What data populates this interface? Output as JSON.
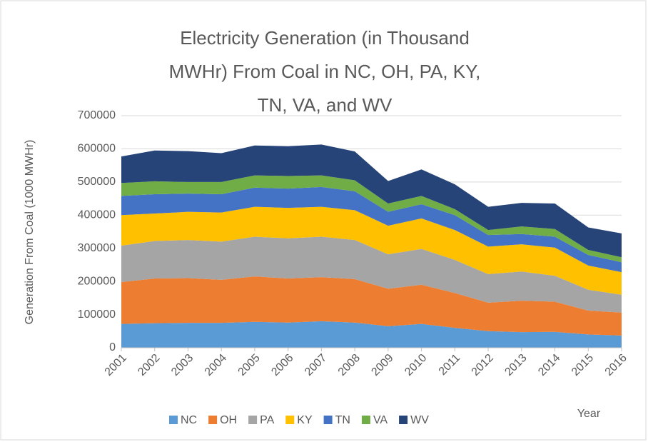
{
  "chart_data": {
    "type": "stacked_area",
    "title": "Electricity Generation (in Thousand MWHr) From Coal in NC, OH, PA, KY, TN, VA, and WV",
    "x_label": "Year",
    "y_label": "Generation From Coal (1000 MWHr)",
    "x": [
      2001,
      2002,
      2003,
      2004,
      2005,
      2006,
      2007,
      2008,
      2009,
      2010,
      2011,
      2012,
      2013,
      2014,
      2015,
      2016
    ],
    "xlim": [
      2001,
      2016
    ],
    "ylim": [
      0,
      700000
    ],
    "yticks": [
      0,
      100000,
      200000,
      300000,
      400000,
      500000,
      600000,
      700000
    ],
    "grid": true,
    "legend": "bottom",
    "series": [
      {
        "name": "NC",
        "color": "#5b9bd5",
        "values": [
          72000,
          74000,
          75000,
          75000,
          78000,
          76000,
          80000,
          76000,
          65000,
          72000,
          60000,
          50000,
          47000,
          48000,
          40000,
          37000
        ]
      },
      {
        "name": "OH",
        "color": "#ed7d31",
        "values": [
          126000,
          135000,
          135000,
          130000,
          137000,
          133000,
          133000,
          131000,
          113000,
          118000,
          105000,
          86000,
          95000,
          91000,
          72000,
          69000
        ]
      },
      {
        "name": "PA",
        "color": "#a5a5a5",
        "values": [
          110000,
          113000,
          115000,
          115000,
          120000,
          121000,
          122000,
          118000,
          104000,
          108000,
          100000,
          86000,
          88000,
          78000,
          63000,
          54000
        ]
      },
      {
        "name": "KY",
        "color": "#ffc000",
        "values": [
          92000,
          83000,
          85000,
          88000,
          90000,
          92000,
          90000,
          90000,
          86000,
          92000,
          90000,
          83000,
          82000,
          85000,
          73000,
          68000
        ]
      },
      {
        "name": "TN",
        "color": "#4472c4",
        "values": [
          58000,
          58000,
          55000,
          55000,
          58000,
          58000,
          60000,
          57000,
          42000,
          43000,
          45000,
          35000,
          31000,
          33000,
          32000,
          30000
        ]
      },
      {
        "name": "VA",
        "color": "#70ad47",
        "values": [
          39000,
          39000,
          35000,
          37000,
          37000,
          38000,
          35000,
          33000,
          25000,
          25000,
          18000,
          15000,
          23000,
          23000,
          15000,
          15000
        ]
      },
      {
        "name": "WV",
        "color": "#264478",
        "values": [
          80000,
          93000,
          93000,
          87000,
          90000,
          90000,
          93000,
          87000,
          68000,
          80000,
          75000,
          70000,
          71000,
          77000,
          68000,
          72000
        ]
      }
    ]
  }
}
